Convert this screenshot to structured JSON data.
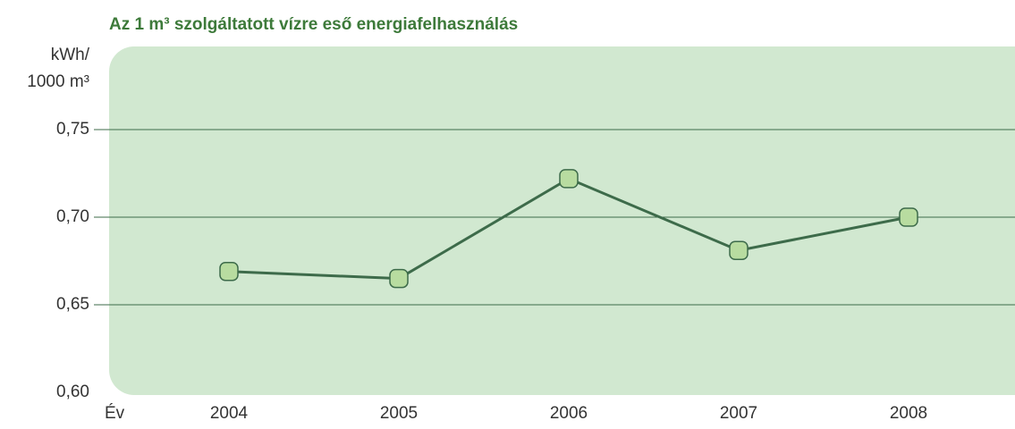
{
  "chart_data": {
    "type": "line",
    "title": "Az 1 m³  szolgáltatott vízre eső energiafelhasználás",
    "y_label": [
      "kWh/",
      "1000 m³"
    ],
    "x_label": "Év",
    "categories": [
      "2004",
      "2005",
      "2006",
      "2007",
      "2008"
    ],
    "series": [
      {
        "name": "energiafelhasználás",
        "color": "#3d6b4a",
        "values": [
          0.669,
          0.665,
          0.722,
          0.681,
          0.7
        ]
      }
    ],
    "ylim": [
      0.6,
      0.775
    ],
    "yticks": [
      {
        "value": 0.6,
        "label": "0,60"
      },
      {
        "value": 0.65,
        "label": "0,65"
      },
      {
        "value": 0.7,
        "label": "0,70"
      },
      {
        "value": 0.75,
        "label": "0,75"
      }
    ],
    "grid": true
  }
}
